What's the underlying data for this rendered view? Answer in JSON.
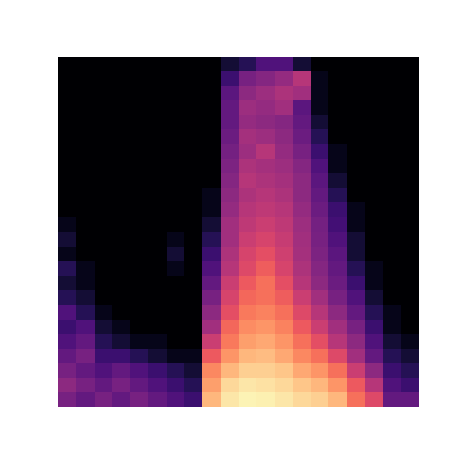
{
  "chart_data": {
    "type": "heatmap",
    "color": "magma",
    "tick_labels": false,
    "color_range": [
      0,
      100
    ],
    "cells": [
      [
        35,
        30,
        35,
        30,
        35,
        30,
        25,
        20,
        85,
        95,
        98,
        97,
        95,
        92,
        90,
        85,
        70,
        60,
        30,
        30
      ],
      [
        40,
        35,
        30,
        35,
        30,
        25,
        20,
        15,
        80,
        92,
        95,
        94,
        92,
        88,
        85,
        78,
        65,
        50,
        25,
        20
      ],
      [
        35,
        30,
        25,
        30,
        25,
        20,
        15,
        10,
        75,
        85,
        90,
        90,
        88,
        82,
        78,
        70,
        55,
        40,
        20,
        15
      ],
      [
        30,
        35,
        20,
        20,
        15,
        10,
        5,
        5,
        65,
        78,
        85,
        86,
        82,
        75,
        70,
        60,
        45,
        30,
        15,
        10
      ],
      [
        25,
        30,
        15,
        10,
        5,
        5,
        0,
        0,
        55,
        72,
        80,
        82,
        78,
        70,
        62,
        50,
        40,
        25,
        10,
        5
      ],
      [
        20,
        25,
        10,
        5,
        0,
        0,
        0,
        0,
        45,
        68,
        76,
        78,
        74,
        65,
        55,
        45,
        35,
        20,
        5,
        0
      ],
      [
        25,
        15,
        5,
        0,
        0,
        0,
        0,
        0,
        40,
        62,
        72,
        74,
        70,
        60,
        50,
        40,
        30,
        15,
        5,
        0
      ],
      [
        15,
        10,
        0,
        0,
        0,
        0,
        0,
        0,
        35,
        58,
        68,
        70,
        66,
        55,
        45,
        35,
        25,
        10,
        0,
        0
      ],
      [
        10,
        5,
        0,
        0,
        0,
        0,
        0,
        0,
        30,
        55,
        65,
        70,
        62,
        50,
        40,
        32,
        20,
        5,
        0,
        0
      ],
      [
        15,
        5,
        0,
        0,
        0,
        0,
        5,
        0,
        25,
        50,
        60,
        66,
        58,
        48,
        38,
        30,
        15,
        5,
        0,
        0
      ],
      [
        5,
        0,
        0,
        0,
        0,
        0,
        10,
        0,
        20,
        48,
        58,
        62,
        56,
        46,
        36,
        28,
        10,
        0,
        0,
        0
      ],
      [
        10,
        0,
        0,
        0,
        0,
        0,
        5,
        0,
        15,
        45,
        55,
        58,
        54,
        45,
        35,
        25,
        10,
        0,
        0,
        0
      ],
      [
        5,
        0,
        0,
        0,
        0,
        0,
        0,
        0,
        10,
        45,
        52,
        55,
        52,
        44,
        34,
        22,
        5,
        0,
        0,
        0
      ],
      [
        0,
        0,
        0,
        0,
        0,
        0,
        0,
        0,
        5,
        42,
        50,
        52,
        50,
        42,
        32,
        20,
        5,
        0,
        0,
        0
      ],
      [
        0,
        0,
        0,
        0,
        0,
        0,
        0,
        0,
        5,
        40,
        48,
        50,
        48,
        40,
        30,
        15,
        0,
        0,
        0,
        0
      ],
      [
        0,
        0,
        0,
        0,
        0,
        0,
        0,
        0,
        0,
        38,
        50,
        48,
        46,
        40,
        28,
        10,
        0,
        0,
        0,
        0
      ],
      [
        0,
        0,
        0,
        0,
        0,
        0,
        0,
        0,
        0,
        36,
        48,
        46,
        44,
        38,
        25,
        5,
        0,
        0,
        0,
        0
      ],
      [
        0,
        0,
        0,
        0,
        0,
        0,
        0,
        0,
        0,
        34,
        44,
        50,
        42,
        35,
        20,
        5,
        0,
        0,
        0,
        0
      ],
      [
        0,
        0,
        0,
        0,
        0,
        0,
        0,
        0,
        0,
        32,
        46,
        44,
        40,
        32,
        15,
        0,
        0,
        0,
        0,
        0
      ],
      [
        0,
        0,
        0,
        0,
        0,
        0,
        0,
        0,
        0,
        30,
        42,
        40,
        38,
        30,
        10,
        0,
        0,
        0,
        0,
        0
      ],
      [
        0,
        0,
        0,
        0,
        0,
        0,
        0,
        0,
        0,
        30,
        44,
        42,
        45,
        28,
        5,
        0,
        0,
        0,
        0,
        0
      ],
      [
        0,
        0,
        0,
        0,
        0,
        0,
        0,
        0,
        0,
        28,
        40,
        44,
        48,
        45,
        5,
        0,
        0,
        0,
        0,
        0
      ],
      [
        0,
        0,
        0,
        0,
        0,
        0,
        0,
        0,
        0,
        20,
        35,
        38,
        42,
        50,
        5,
        0,
        0,
        0,
        0,
        0
      ],
      [
        0,
        0,
        0,
        0,
        0,
        0,
        0,
        0,
        0,
        10,
        15,
        25,
        25,
        10,
        0,
        0,
        0,
        0,
        0,
        0
      ]
    ]
  }
}
